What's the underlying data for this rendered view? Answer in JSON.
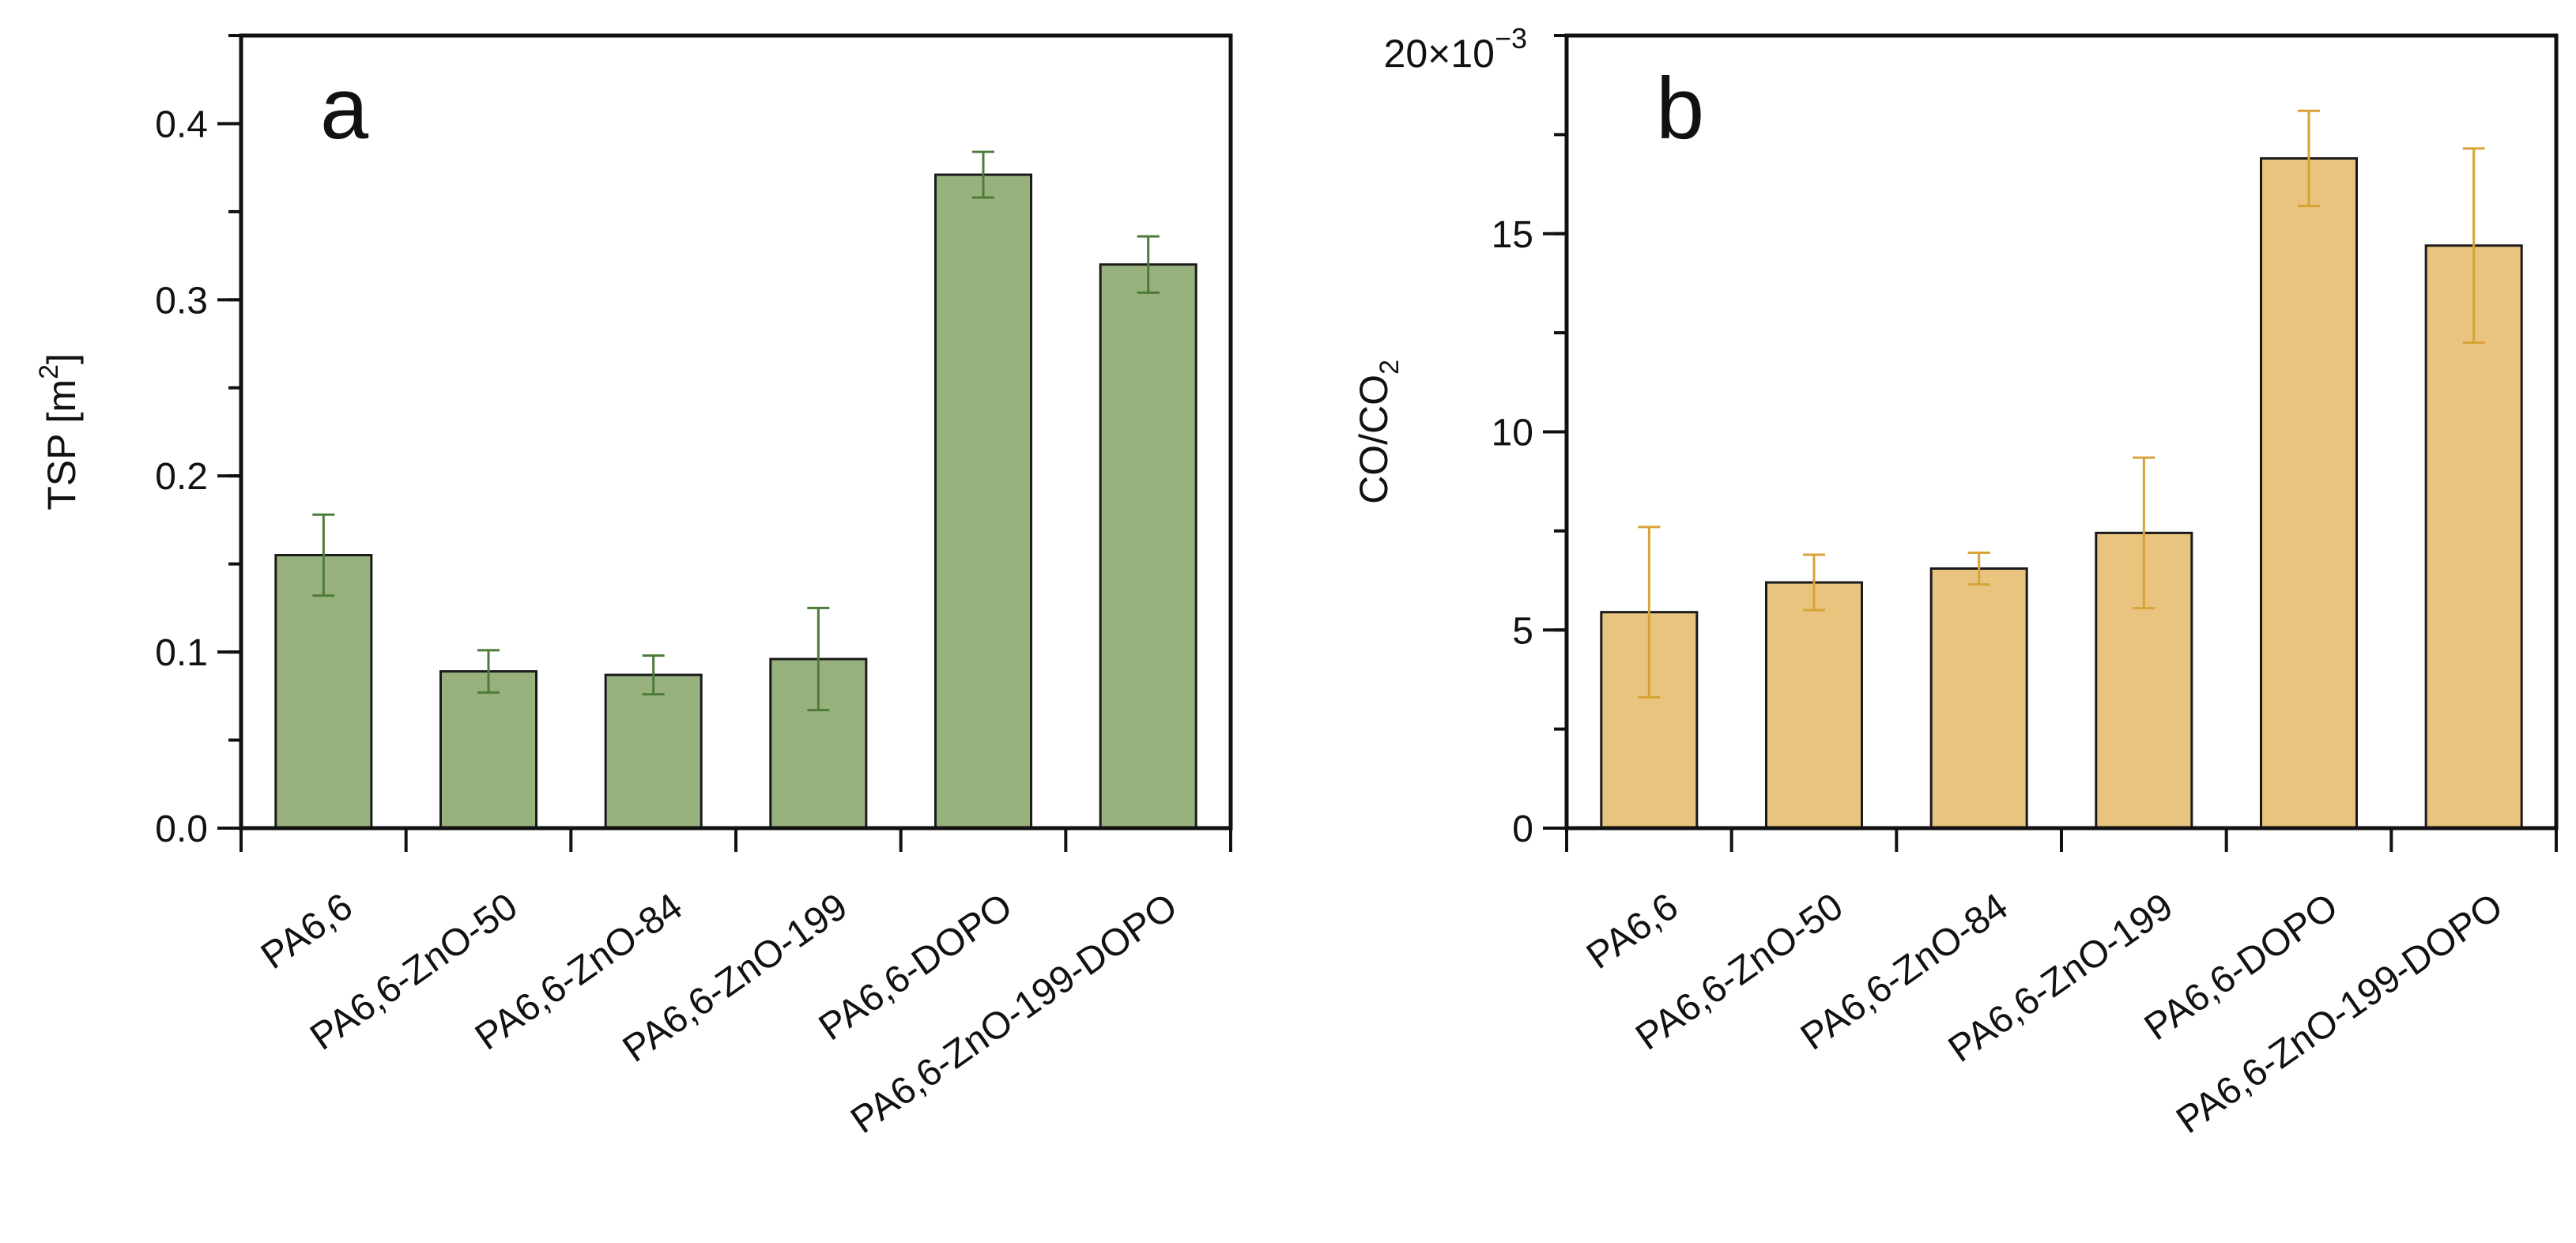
{
  "chart_data": [
    {
      "type": "bar",
      "panel": "a",
      "categories": [
        "PA6,6",
        "PA6,6-ZnO-50",
        "PA6,6-ZnO-84",
        "PA6,6-ZnO-199",
        "PA6,6-DOPO",
        "PA6,6-ZnO-199-DOPO"
      ],
      "values": [
        0.155,
        0.089,
        0.087,
        0.096,
        0.371,
        0.32
      ],
      "errors": [
        0.023,
        0.012,
        0.011,
        0.029,
        0.013,
        0.016
      ],
      "ylabel": "TSP [m",
      "ylabel_sup": "2",
      "ylabel_end": "]",
      "ylim": [
        0,
        0.45
      ],
      "yticks": [
        "0.0",
        "0.1",
        "0.2",
        "0.3",
        "0.4"
      ],
      "ytick_values": [
        0,
        0.1,
        0.2,
        0.3,
        0.4
      ],
      "bar_color": "#98b27e",
      "error_color": "#4e7a3a",
      "grid": false
    },
    {
      "type": "bar",
      "panel": "b",
      "categories": [
        "PA6,6",
        "PA6,6-ZnO-50",
        "PA6,6-ZnO-84",
        "PA6,6-ZnO-199",
        "PA6,6-DOPO",
        "PA6,6-ZnO-199-DOPO"
      ],
      "values": [
        5.45,
        6.2,
        6.55,
        7.45,
        16.9,
        14.7
      ],
      "errors": [
        2.15,
        0.7,
        0.4,
        1.9,
        1.2,
        2.45
      ],
      "ylabel": "CO/CO",
      "ylabel_sub": "2",
      "ylim": [
        0,
        20
      ],
      "yticks": [
        "0",
        "5",
        "10",
        "15"
      ],
      "ytick_values": [
        0,
        5,
        10,
        15
      ],
      "exponent_label": "20×10",
      "exponent_sup": "−3",
      "bar_color": "#e8c47f",
      "error_color": "#d7a336",
      "grid": false
    }
  ]
}
